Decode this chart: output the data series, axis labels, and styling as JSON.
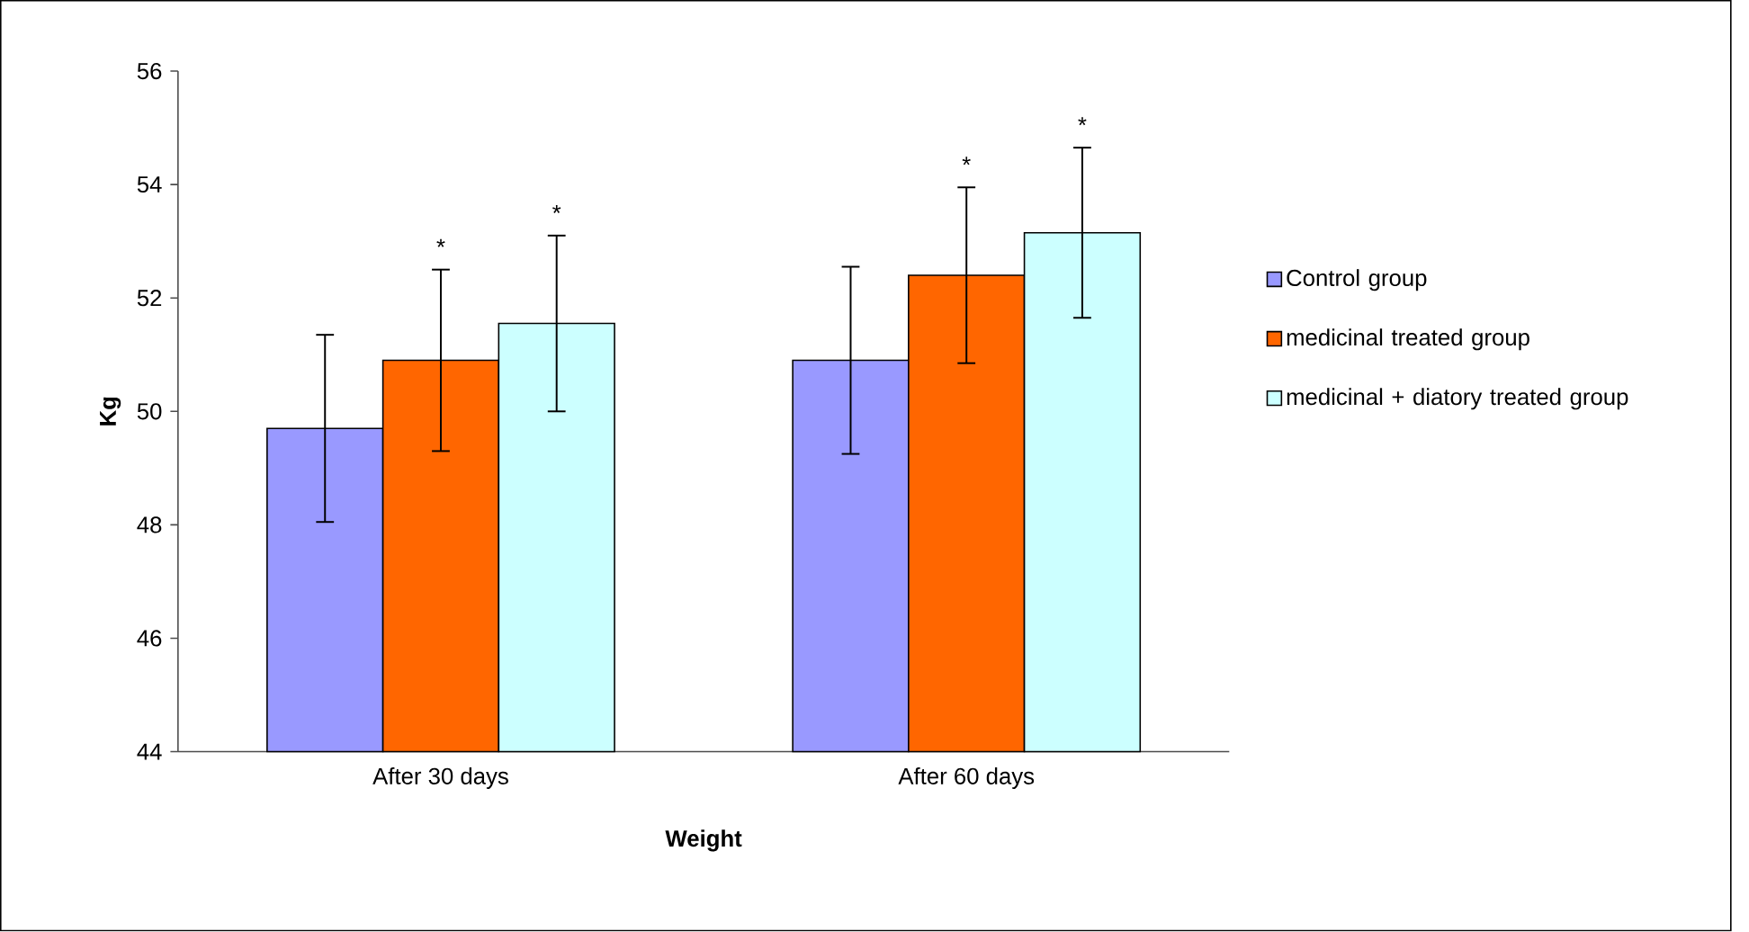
{
  "chart_data": {
    "type": "bar",
    "xlabel": "Weight",
    "ylabel": "Kg",
    "categories": [
      "After 30 days",
      "After 60 days"
    ],
    "series": [
      {
        "name": "Control group",
        "color": "#9999ff",
        "values": [
          49.7,
          50.9
        ],
        "errors": [
          1.65,
          1.65
        ]
      },
      {
        "name": "medicinal treated group",
        "color": "#ff6600",
        "values": [
          50.9,
          52.4
        ],
        "errors": [
          1.6,
          1.55
        ]
      },
      {
        "name": "medicinal + diatory treated group",
        "color": "#ccffff",
        "values": [
          51.55,
          53.15
        ],
        "errors": [
          1.55,
          1.5
        ]
      }
    ],
    "ylim": [
      44,
      56
    ],
    "yticks": [
      44,
      46,
      48,
      50,
      52,
      54,
      56
    ],
    "legend": "right",
    "grid": false,
    "annotations": [
      "*",
      "*",
      "*",
      "*"
    ]
  }
}
